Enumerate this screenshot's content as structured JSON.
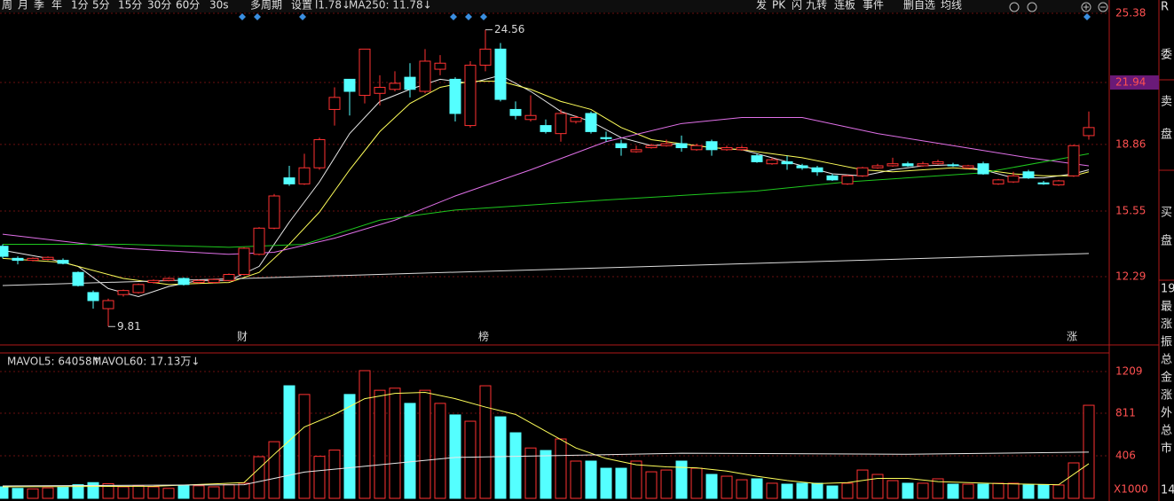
{
  "toolbar": {
    "left": [
      "周",
      "月",
      "季",
      "年",
      "1分",
      "5分",
      "15分",
      "30分",
      "60分",
      "30s",
      "多周期",
      "设置"
    ],
    "legend": [
      "l1.78↓",
      "MA250: 11.78↓"
    ],
    "right": [
      "发",
      "PK",
      "闪",
      "九转",
      "连板",
      "事件",
      "删自选",
      "均线"
    ]
  },
  "sidebar": [
    "R",
    "委",
    "卖",
    "盘",
    "买",
    "盘",
    "19",
    "最",
    "涨",
    "振",
    "总",
    "金",
    "涨",
    "外",
    "总",
    "市",
    "14"
  ],
  "chart_data": [
    {
      "type": "candlestick",
      "up_color": "#ff3232",
      "down_color": "#54ffff",
      "ylim": [
        8.94,
        26.04
      ],
      "yticks": [
        25.38,
        21.94,
        18.86,
        15.55,
        12.29
      ],
      "grid": true,
      "event_markers": [
        "财",
        "榜",
        "涨"
      ],
      "open": [
        13.8,
        13.2,
        13.1,
        13.15,
        13.1,
        12.5,
        11.5,
        10.7,
        11.4,
        11.5,
        12.0,
        12.1,
        12.2,
        12.0,
        12.0,
        12.1,
        12.4,
        13.4,
        14.7,
        17.2,
        16.9,
        17.7,
        20.6,
        22.1,
        21.3,
        21.4,
        21.6,
        22.2,
        21.5,
        22.6,
        22.1,
        19.8,
        22.8,
        23.6,
        20.6,
        20.1,
        19.8,
        19.4,
        20.0,
        20.4,
        19.2,
        18.9,
        18.5,
        18.7,
        18.8,
        18.9,
        18.6,
        19.0,
        18.6,
        18.6,
        18.3,
        17.9,
        18.0,
        17.8,
        17.7,
        17.3,
        16.9,
        17.3,
        17.7,
        17.8,
        17.9,
        17.8,
        17.9,
        17.85,
        17.7,
        17.9,
        16.9,
        17.0,
        17.5,
        16.95,
        16.85,
        17.3,
        19.3
      ],
      "high": [
        13.9,
        13.3,
        13.25,
        13.3,
        13.2,
        12.55,
        11.6,
        11.2,
        11.65,
        11.95,
        12.15,
        12.25,
        12.25,
        12.15,
        12.2,
        12.45,
        13.75,
        14.75,
        16.4,
        17.8,
        18.4,
        19.2,
        21.7,
        22.1,
        23.6,
        22.3,
        22.5,
        22.9,
        23.6,
        23.3,
        22.2,
        23.0,
        24.56,
        23.9,
        21.0,
        21.3,
        20.1,
        20.6,
        20.3,
        20.5,
        19.5,
        19.1,
        18.8,
        18.9,
        19.1,
        19.3,
        18.9,
        19.1,
        18.8,
        18.8,
        18.4,
        18.2,
        18.3,
        17.9,
        17.8,
        17.4,
        17.35,
        17.75,
        17.9,
        18.2,
        18.0,
        18.0,
        18.1,
        17.95,
        17.85,
        18.0,
        17.15,
        17.5,
        17.6,
        17.05,
        17.1,
        18.85,
        20.5
      ],
      "low": [
        13.2,
        12.9,
        13.05,
        13.1,
        12.9,
        11.8,
        10.7,
        9.81,
        11.3,
        11.45,
        11.95,
        12.05,
        11.85,
        11.95,
        11.95,
        12.05,
        12.35,
        13.35,
        14.65,
        16.8,
        16.85,
        17.6,
        19.8,
        20.3,
        20.9,
        20.8,
        21.5,
        21.2,
        21.4,
        22.3,
        20.0,
        19.7,
        22.5,
        21.0,
        20.1,
        20.0,
        19.4,
        19.0,
        19.9,
        19.4,
        19.0,
        18.3,
        18.45,
        18.65,
        18.75,
        18.5,
        18.55,
        18.3,
        18.55,
        18.55,
        17.95,
        17.85,
        17.6,
        17.6,
        17.3,
        17.05,
        16.85,
        17.25,
        17.65,
        17.75,
        17.75,
        17.75,
        17.85,
        17.75,
        17.65,
        17.35,
        16.85,
        16.95,
        17.15,
        16.85,
        16.8,
        17.25,
        19.1
      ],
      "close": [
        13.3,
        13.1,
        13.2,
        13.25,
        12.95,
        11.85,
        11.1,
        11.1,
        11.6,
        11.9,
        12.1,
        12.2,
        11.9,
        12.1,
        12.15,
        12.4,
        13.7,
        14.7,
        16.3,
        16.9,
        17.7,
        19.1,
        21.2,
        21.5,
        23.6,
        21.7,
        21.9,
        21.6,
        23.0,
        22.9,
        20.4,
        22.8,
        23.6,
        21.1,
        20.3,
        20.3,
        19.5,
        20.4,
        20.2,
        19.5,
        19.15,
        18.7,
        18.6,
        18.8,
        18.9,
        18.7,
        18.8,
        18.6,
        18.7,
        18.7,
        18.0,
        18.1,
        17.9,
        17.7,
        17.5,
        17.1,
        17.3,
        17.7,
        17.8,
        17.9,
        17.8,
        17.9,
        18.0,
        17.8,
        17.8,
        17.4,
        17.1,
        17.3,
        17.2,
        16.9,
        17.05,
        18.8,
        19.7
      ],
      "lines": [
        {
          "color": "#e8e8e8",
          "x": [
            0,
            3,
            5,
            7,
            9,
            11,
            13,
            15,
            17,
            19,
            21,
            23,
            25,
            27,
            29,
            31,
            33,
            35,
            37,
            39,
            41,
            43,
            45,
            47,
            49,
            51,
            53,
            55,
            57,
            59,
            61,
            63,
            65,
            67,
            69,
            71,
            72
          ],
          "values": [
            13.6,
            13.2,
            12.8,
            11.7,
            11.3,
            11.8,
            12.1,
            12.1,
            12.8,
            15.0,
            17.0,
            19.4,
            21.0,
            21.6,
            22.1,
            21.9,
            22.3,
            21.5,
            20.5,
            20.0,
            19.2,
            18.8,
            18.9,
            18.7,
            18.6,
            18.2,
            17.8,
            17.4,
            17.3,
            17.6,
            17.8,
            17.85,
            17.6,
            17.2,
            17.2,
            17.4,
            17.6
          ]
        },
        {
          "color": "#ffff5a",
          "x": [
            0,
            4,
            8,
            11,
            15,
            17,
            19,
            21,
            23,
            25,
            27,
            29,
            31,
            33,
            35,
            37,
            39,
            41,
            43,
            45,
            47,
            49,
            51,
            53,
            55,
            57,
            59,
            61,
            63,
            65,
            67,
            69,
            71,
            72
          ],
          "values": [
            13.2,
            13.0,
            12.2,
            11.9,
            12.0,
            12.5,
            13.9,
            15.5,
            17.6,
            19.5,
            20.9,
            21.7,
            22.0,
            22.0,
            21.6,
            21.0,
            20.6,
            19.7,
            19.1,
            18.9,
            18.7,
            18.6,
            18.4,
            18.2,
            17.9,
            17.6,
            17.5,
            17.6,
            17.7,
            17.6,
            17.4,
            17.3,
            17.3,
            17.5
          ]
        },
        {
          "color": "#e070e8",
          "x": [
            0,
            8,
            15,
            18,
            22,
            26,
            30,
            35,
            40,
            45,
            49,
            53,
            58,
            63,
            68,
            72
          ],
          "values": [
            14.4,
            13.7,
            13.4,
            13.5,
            14.2,
            15.1,
            16.3,
            17.6,
            19.0,
            19.9,
            20.2,
            20.2,
            19.4,
            18.8,
            18.2,
            17.8
          ]
        },
        {
          "color": "#1ec81e",
          "x": [
            0,
            8,
            15,
            20,
            25,
            30,
            40,
            50,
            56,
            65,
            72
          ],
          "values": [
            13.9,
            13.9,
            13.75,
            13.9,
            15.1,
            15.6,
            16.1,
            16.55,
            17.0,
            17.45,
            18.4
          ]
        },
        {
          "color": "#dcdcdc",
          "x": [
            0,
            72
          ],
          "values": [
            11.85,
            13.44
          ]
        }
      ]
    },
    {
      "type": "volume",
      "ylim": [
        0,
        1386
      ],
      "yticks": [
        1209,
        811,
        406
      ],
      "unit_label": "X1000",
      "grid": true,
      "legend": [
        "MAVOL5: 64058↑",
        "MAVOL60: 17.13万↓"
      ],
      "values": [
        110,
        95,
        90,
        100,
        105,
        130,
        150,
        140,
        110,
        120,
        110,
        95,
        120,
        120,
        110,
        130,
        144,
        397,
        540,
        1073,
        990,
        400,
        460,
        990,
        1217,
        1030,
        1050,
        905,
        1030,
        905,
        795,
        735,
        1073,
        777,
        625,
        480,
        456,
        566,
        355,
        355,
        287,
        287,
        355,
        253,
        270,
        355,
        287,
        228,
        211,
        177,
        186,
        144,
        135,
        144,
        144,
        118,
        144,
        270,
        228,
        169,
        144,
        144,
        186,
        135,
        135,
        135,
        144,
        144,
        127,
        127,
        127,
        338,
        887
      ],
      "lines": [
        {
          "color": "#ffff5a",
          "x": [
            0,
            10,
            16,
            18,
            20,
            22,
            24,
            26,
            28,
            30,
            32,
            34,
            36,
            38,
            40,
            42,
            44,
            46,
            48,
            50,
            52,
            54,
            56,
            58,
            60,
            62,
            64,
            66,
            68,
            70,
            72
          ],
          "values": [
            110,
            115,
            150,
            420,
            680,
            800,
            950,
            1000,
            1010,
            950,
            870,
            800,
            640,
            480,
            380,
            320,
            300,
            290,
            260,
            210,
            170,
            140,
            150,
            190,
            190,
            160,
            150,
            140,
            135,
            130,
            330
          ]
        },
        {
          "color": "#e8e8e8",
          "x": [
            0,
            16,
            20,
            30,
            45,
            60,
            72
          ],
          "values": [
            118,
            130,
            250,
            390,
            430,
            420,
            440
          ]
        }
      ]
    }
  ]
}
